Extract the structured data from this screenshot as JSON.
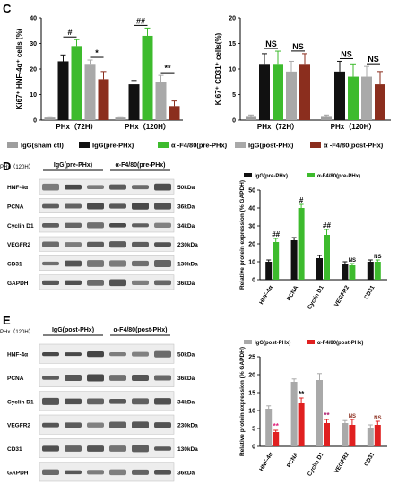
{
  "panels": {
    "C": {
      "letter": "C"
    },
    "D": {
      "letter": "D"
    },
    "E": {
      "letter": "E"
    }
  },
  "chart_data": [
    {
      "id": "c_left",
      "type": "bar",
      "ylabel": "Ki67⁺ HNF-4α⁺ cells (%)",
      "ylim": [
        0,
        40
      ],
      "yticks": [
        0,
        10,
        20,
        30,
        40
      ],
      "groups": [
        "PHx（72H）",
        "PHx（120H）"
      ],
      "series": [
        {
          "name": "IgG(sham ctl)",
          "color": "#9e9e9e",
          "values": [
            1,
            1
          ],
          "errors": [
            0.3,
            0.3
          ]
        },
        {
          "name": "IgG(pre-PHx)",
          "color": "#111111",
          "values": [
            23,
            14
          ],
          "errors": [
            2.5,
            1.5
          ]
        },
        {
          "name": "α -F4/80(pre-PHx)",
          "color": "#3dbb2d",
          "values": [
            29,
            33
          ],
          "errors": [
            2.5,
            3
          ]
        },
        {
          "name": "IgG(post-PHx)",
          "color": "#a9a9a9",
          "values": [
            22,
            15
          ],
          "errors": [
            1.5,
            2.5
          ]
        },
        {
          "name": "α -F4/80(post-PHx)",
          "color": "#8b2e1e",
          "values": [
            16,
            5.5
          ],
          "errors": [
            3,
            2
          ]
        }
      ],
      "annotations": [
        {
          "label": "#",
          "group": 0,
          "from": 1,
          "to": 2
        },
        {
          "label": "*",
          "group": 0,
          "from": 3,
          "to": 4
        },
        {
          "label": "##",
          "group": 1,
          "from": 1,
          "to": 2
        },
        {
          "label": "**",
          "group": 1,
          "from": 3,
          "to": 4
        }
      ]
    },
    {
      "id": "c_right",
      "type": "bar",
      "ylabel": "Ki67⁺ CD31⁺ cells(%)",
      "ylim": [
        0,
        20
      ],
      "yticks": [
        0,
        5,
        10,
        15,
        20
      ],
      "groups": [
        "PHx（72H）",
        "PHx（120H）"
      ],
      "series": [
        {
          "name": "IgG(sham ctl)",
          "color": "#9e9e9e",
          "values": [
            0.8,
            0.8
          ],
          "errors": [
            0.2,
            0.2
          ]
        },
        {
          "name": "IgG(pre-PHx)",
          "color": "#111111",
          "values": [
            11,
            9.5
          ],
          "errors": [
            2,
            2
          ]
        },
        {
          "name": "α -F4/80(pre-PHx)",
          "color": "#3dbb2d",
          "values": [
            11,
            8.5
          ],
          "errors": [
            2.5,
            2.5
          ]
        },
        {
          "name": "IgG(post-PHx)",
          "color": "#a9a9a9",
          "values": [
            9.5,
            8.5
          ],
          "errors": [
            2,
            2
          ]
        },
        {
          "name": "α -F4/80(post-PHx)",
          "color": "#8b2e1e",
          "values": [
            11,
            7
          ],
          "errors": [
            2,
            2.5
          ]
        }
      ],
      "annotations": [
        {
          "label": "NS",
          "group": 0,
          "from": 1,
          "to": 2
        },
        {
          "label": "NS",
          "group": 0,
          "from": 3,
          "to": 4
        },
        {
          "label": "NS",
          "group": 1,
          "from": 1,
          "to": 2
        },
        {
          "label": "NS",
          "group": 1,
          "from": 3,
          "to": 4
        }
      ]
    },
    {
      "id": "d_chart",
      "type": "bar",
      "ylabel": "Relative protein expression (% GAPDH)",
      "ylim": [
        0,
        50
      ],
      "yticks": [
        0,
        10,
        20,
        30,
        40,
        50
      ],
      "categories": [
        "HNF-4α",
        "PCNA",
        "Cyclin D1",
        "VEGFR2",
        "CD31"
      ],
      "legend": [
        "IgG(pre-PHx)",
        "α-F4/80(pre-PHx)"
      ],
      "series": [
        {
          "name": "IgG(pre-PHx)",
          "color": "#111111",
          "values": [
            10,
            22,
            12,
            9,
            10
          ],
          "errors": [
            1,
            1.5,
            1.5,
            1,
            1
          ]
        },
        {
          "name": "α-F4/80(pre-PHx)",
          "color": "#3dbb2d",
          "values": [
            21,
            40,
            25,
            8,
            10
          ],
          "errors": [
            2,
            2,
            3,
            1,
            1
          ]
        }
      ],
      "annotations": [
        "##",
        "#",
        "##",
        "NS",
        "NS"
      ]
    },
    {
      "id": "e_chart",
      "type": "bar",
      "ylabel": "Relative protein expression (% GAPDH)",
      "ylim": [
        0,
        25
      ],
      "yticks": [
        0,
        5,
        10,
        15,
        20,
        25
      ],
      "categories": [
        "HNF-4α",
        "PCNA",
        "Cyclin D1",
        "VEGFR2",
        "CD31"
      ],
      "legend": [
        "IgG(post-PHx)",
        "α-F4/80(post-PHx)"
      ],
      "series": [
        {
          "name": "IgG(post-PHx)",
          "color": "#a9a9a9",
          "values": [
            10.5,
            18,
            18.5,
            6.5,
            5
          ],
          "errors": [
            0.8,
            0.8,
            1.8,
            0.7,
            1
          ]
        },
        {
          "name": "α-F4/80(post-PHx)",
          "color": "#e02020",
          "values": [
            4,
            12,
            6.5,
            6,
            6
          ],
          "errors": [
            0.5,
            1.5,
            1,
            1.5,
            1
          ]
        }
      ],
      "annotations": [
        "**",
        "**",
        "**",
        "NS",
        "NS"
      ],
      "annotation_colors": [
        "#e0207a",
        "#111111",
        "#b0206f",
        "#8b2e1e",
        "#8b2e1e"
      ]
    }
  ],
  "blots": {
    "D": {
      "time_label": "PHx（120H）",
      "group_labels": [
        "IgG(pre-PHx)",
        "α-F4/80(pre-PHx)"
      ],
      "rows": [
        {
          "protein": "HNF-4α",
          "kda": "50kDa"
        },
        {
          "protein": "PCNA",
          "kda": "36kDa"
        },
        {
          "protein": "Cyclin D1",
          "kda": "34kDa"
        },
        {
          "protein": "VEGFR2",
          "kda": "230kDa"
        },
        {
          "protein": "CD31",
          "kda": "130kDa"
        },
        {
          "protein": "GAPDH",
          "kda": "36kDa"
        }
      ]
    },
    "E": {
      "time_label": "PHx（120H）",
      "group_labels": [
        "IgG(post-PHx)",
        "α-F4/80(post-PHx)"
      ],
      "rows": [
        {
          "protein": "HNF-4α",
          "kda": "50kDa"
        },
        {
          "protein": "PCNA",
          "kda": "36kDa"
        },
        {
          "protein": "Cyclin D1",
          "kda": "34kDa"
        },
        {
          "protein": "VEGFR2",
          "kda": "230kDa"
        },
        {
          "protein": "CD31",
          "kda": "130kDa"
        },
        {
          "protein": "GAPDH",
          "kda": "36kDa"
        }
      ]
    }
  }
}
